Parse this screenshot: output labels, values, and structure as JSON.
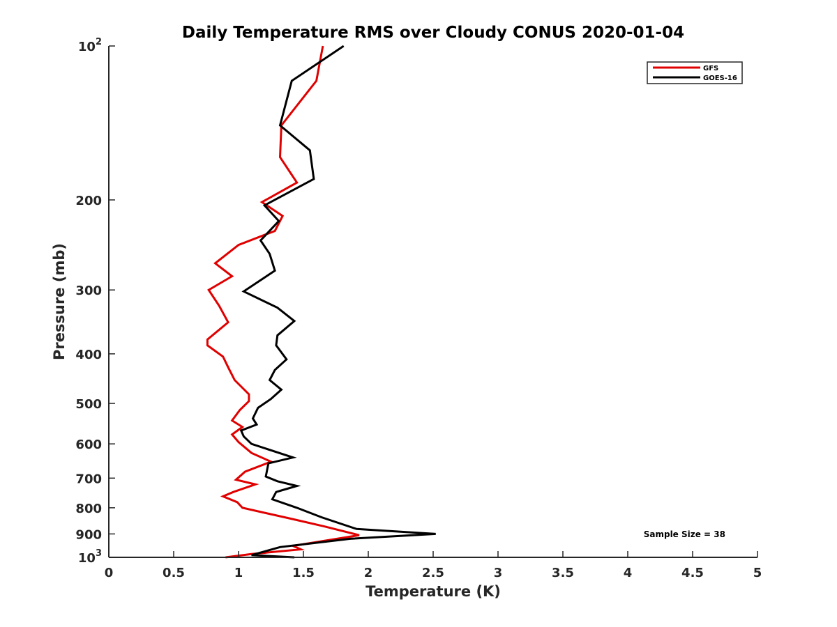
{
  "chart_data": {
    "type": "line",
    "title": "Daily Temperature RMS over Cloudy CONUS 2020-01-04",
    "xlabel": "Temperature (K)",
    "ylabel": "Pressure (mb)",
    "xlim": [
      0,
      5
    ],
    "ylim": [
      100,
      1000
    ],
    "y_scale": "log",
    "y_reversed": true,
    "grid": false,
    "legend_position": "top-right",
    "x_ticks": [
      0,
      0.5,
      1,
      1.5,
      2,
      2.5,
      3,
      3.5,
      4,
      4.5,
      5
    ],
    "x_tick_labels": [
      "0",
      "0.5",
      "1",
      "1.5",
      "2",
      "2.5",
      "3",
      "3.5",
      "4",
      "4.5",
      "5"
    ],
    "y_ticks": [
      100,
      200,
      300,
      400,
      500,
      600,
      700,
      800,
      900,
      1000
    ],
    "y_tick_labels": [
      {
        "base": "10",
        "exp": "2"
      },
      {
        "base": "200",
        "exp": ""
      },
      {
        "base": "300",
        "exp": ""
      },
      {
        "base": "400",
        "exp": ""
      },
      {
        "base": "500",
        "exp": ""
      },
      {
        "base": "600",
        "exp": ""
      },
      {
        "base": "700",
        "exp": ""
      },
      {
        "base": "800",
        "exp": ""
      },
      {
        "base": "900",
        "exp": ""
      },
      {
        "base": "10",
        "exp": "3"
      }
    ],
    "annotation": "Sample Size = 38",
    "series": [
      {
        "name": "GFS",
        "color": "#e00000",
        "points": [
          [
            1.65,
            100
          ],
          [
            1.6,
            117
          ],
          [
            1.33,
            143
          ],
          [
            1.32,
            165
          ],
          [
            1.45,
            185
          ],
          [
            1.18,
            202
          ],
          [
            1.34,
            215
          ],
          [
            1.28,
            230
          ],
          [
            1.0,
            245
          ],
          [
            0.82,
            266
          ],
          [
            0.95,
            282
          ],
          [
            0.77,
            300
          ],
          [
            0.85,
            322
          ],
          [
            0.92,
            347
          ],
          [
            0.76,
            375
          ],
          [
            0.76,
            385
          ],
          [
            0.88,
            405
          ],
          [
            0.92,
            425
          ],
          [
            0.97,
            450
          ],
          [
            1.08,
            480
          ],
          [
            1.08,
            495
          ],
          [
            1.01,
            515
          ],
          [
            0.95,
            540
          ],
          [
            1.03,
            556
          ],
          [
            0.95,
            575
          ],
          [
            1.0,
            595
          ],
          [
            1.1,
            625
          ],
          [
            1.25,
            650
          ],
          [
            1.05,
            680
          ],
          [
            0.98,
            705
          ],
          [
            1.13,
            720
          ],
          [
            0.96,
            745
          ],
          [
            0.88,
            760
          ],
          [
            0.99,
            780
          ],
          [
            1.03,
            800
          ],
          [
            1.4,
            840
          ],
          [
            1.66,
            870
          ],
          [
            1.93,
            905
          ],
          [
            1.42,
            950
          ],
          [
            1.48,
            965
          ],
          [
            1.1,
            985
          ],
          [
            0.9,
            1000
          ]
        ]
      },
      {
        "name": "GOES-16",
        "color": "#000000",
        "points": [
          [
            1.81,
            100
          ],
          [
            1.41,
            117
          ],
          [
            1.32,
            143
          ],
          [
            1.55,
            160
          ],
          [
            1.58,
            182
          ],
          [
            1.2,
            205
          ],
          [
            1.31,
            220
          ],
          [
            1.17,
            240
          ],
          [
            1.24,
            255
          ],
          [
            1.28,
            275
          ],
          [
            1.04,
            302
          ],
          [
            1.3,
            325
          ],
          [
            1.43,
            345
          ],
          [
            1.3,
            368
          ],
          [
            1.29,
            385
          ],
          [
            1.37,
            410
          ],
          [
            1.28,
            430
          ],
          [
            1.24,
            450
          ],
          [
            1.33,
            470
          ],
          [
            1.25,
            490
          ],
          [
            1.15,
            510
          ],
          [
            1.11,
            535
          ],
          [
            1.14,
            550
          ],
          [
            1.02,
            565
          ],
          [
            1.04,
            580
          ],
          [
            1.1,
            600
          ],
          [
            1.42,
            638
          ],
          [
            1.23,
            655
          ],
          [
            1.21,
            695
          ],
          [
            1.3,
            710
          ],
          [
            1.45,
            725
          ],
          [
            1.33,
            740
          ],
          [
            1.29,
            745
          ],
          [
            1.26,
            770
          ],
          [
            1.45,
            800
          ],
          [
            1.64,
            835
          ],
          [
            1.91,
            880
          ],
          [
            2.52,
            900
          ],
          [
            1.86,
            920
          ],
          [
            1.32,
            955
          ],
          [
            1.1,
            990
          ],
          [
            1.43,
            1000
          ]
        ]
      }
    ]
  }
}
